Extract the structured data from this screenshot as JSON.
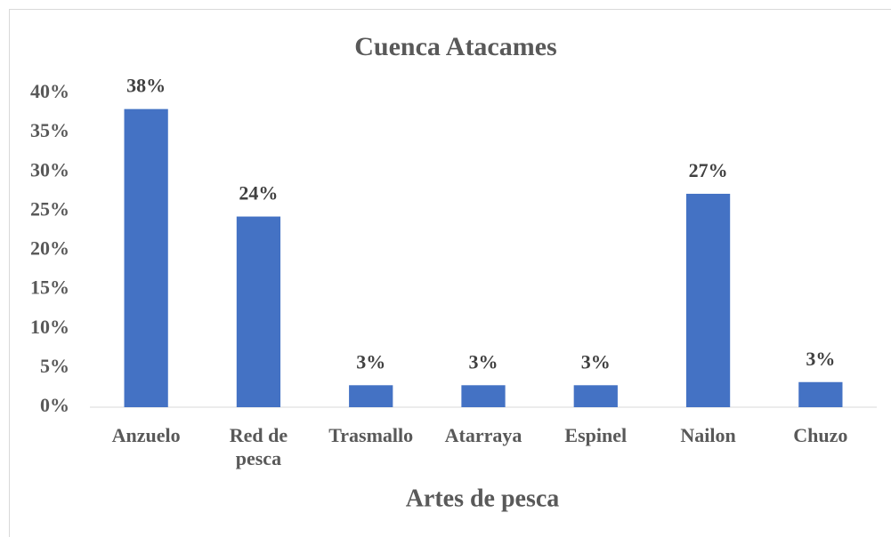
{
  "chart_data": {
    "type": "bar",
    "title": "Cuenca Atacames",
    "x_label": "Artes de pesca",
    "categories": [
      "Anzuelo",
      "Red de pesca",
      "Trasmallo",
      "Atarraya",
      "Espinel",
      "Nailon",
      "Chuzo"
    ],
    "values": [
      38,
      24.3,
      2.8,
      2.8,
      2.8,
      27.2,
      3.2
    ],
    "value_labels": [
      "38%",
      "24%",
      "3%",
      "3%",
      "3%",
      "27%",
      "3%"
    ],
    "color": "#4472c4",
    "ylim": [
      0,
      40
    ],
    "yticks": [
      {
        "value": 0,
        "label": "0%"
      },
      {
        "value": 5,
        "label": "5%"
      },
      {
        "value": 10,
        "label": "10%"
      },
      {
        "value": 15,
        "label": "15%"
      },
      {
        "value": 20,
        "label": "20%"
      },
      {
        "value": 25,
        "label": "25%"
      },
      {
        "value": 30,
        "label": "30%"
      },
      {
        "value": 35,
        "label": "35%"
      },
      {
        "value": 40,
        "label": "40%"
      }
    ],
    "grid": false
  }
}
